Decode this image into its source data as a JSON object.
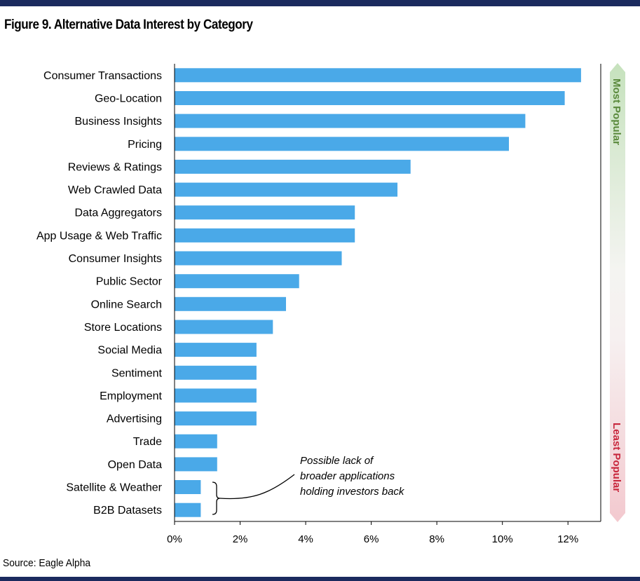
{
  "title": "Figure 9. Alternative Data Interest by Category",
  "source": "Source: Eagle Alpha",
  "annotation": [
    "Possible lack of",
    "broader applications",
    "holding investors back"
  ],
  "scale_labels": {
    "top": "Most Popular",
    "bottom": "Least Popular"
  },
  "colors": {
    "bar": "#4aa9e8",
    "rule": "#1b2a5e",
    "most_popular": "#5a8a3c",
    "least_popular": "#c8263c"
  },
  "chart_data": {
    "type": "bar",
    "orientation": "horizontal",
    "title": "Figure 9. Alternative Data Interest by Category",
    "xlabel": "",
    "ylabel": "",
    "xlim": [
      0,
      13
    ],
    "x_ticks": [
      0,
      2,
      4,
      6,
      8,
      10,
      12
    ],
    "x_tick_labels": [
      "0%",
      "2%",
      "4%",
      "6%",
      "8%",
      "10%",
      "12%"
    ],
    "grid": false,
    "categories": [
      "Consumer Transactions",
      "Geo-Location",
      "Business Insights",
      "Pricing",
      "Reviews & Ratings",
      "Web Crawled Data",
      "Data Aggregators",
      "App Usage & Web Traffic",
      "Consumer Insights",
      "Public Sector",
      "Online Search",
      "Store Locations",
      "Social Media",
      "Sentiment",
      "Employment",
      "Advertising",
      "Trade",
      "Open Data",
      "Satellite & Weather",
      "B2B Datasets"
    ],
    "values": [
      12.4,
      11.9,
      10.7,
      10.2,
      7.2,
      6.8,
      5.5,
      5.5,
      5.1,
      3.8,
      3.4,
      3.0,
      2.5,
      2.5,
      2.5,
      2.5,
      1.3,
      1.3,
      0.8,
      0.8
    ]
  }
}
